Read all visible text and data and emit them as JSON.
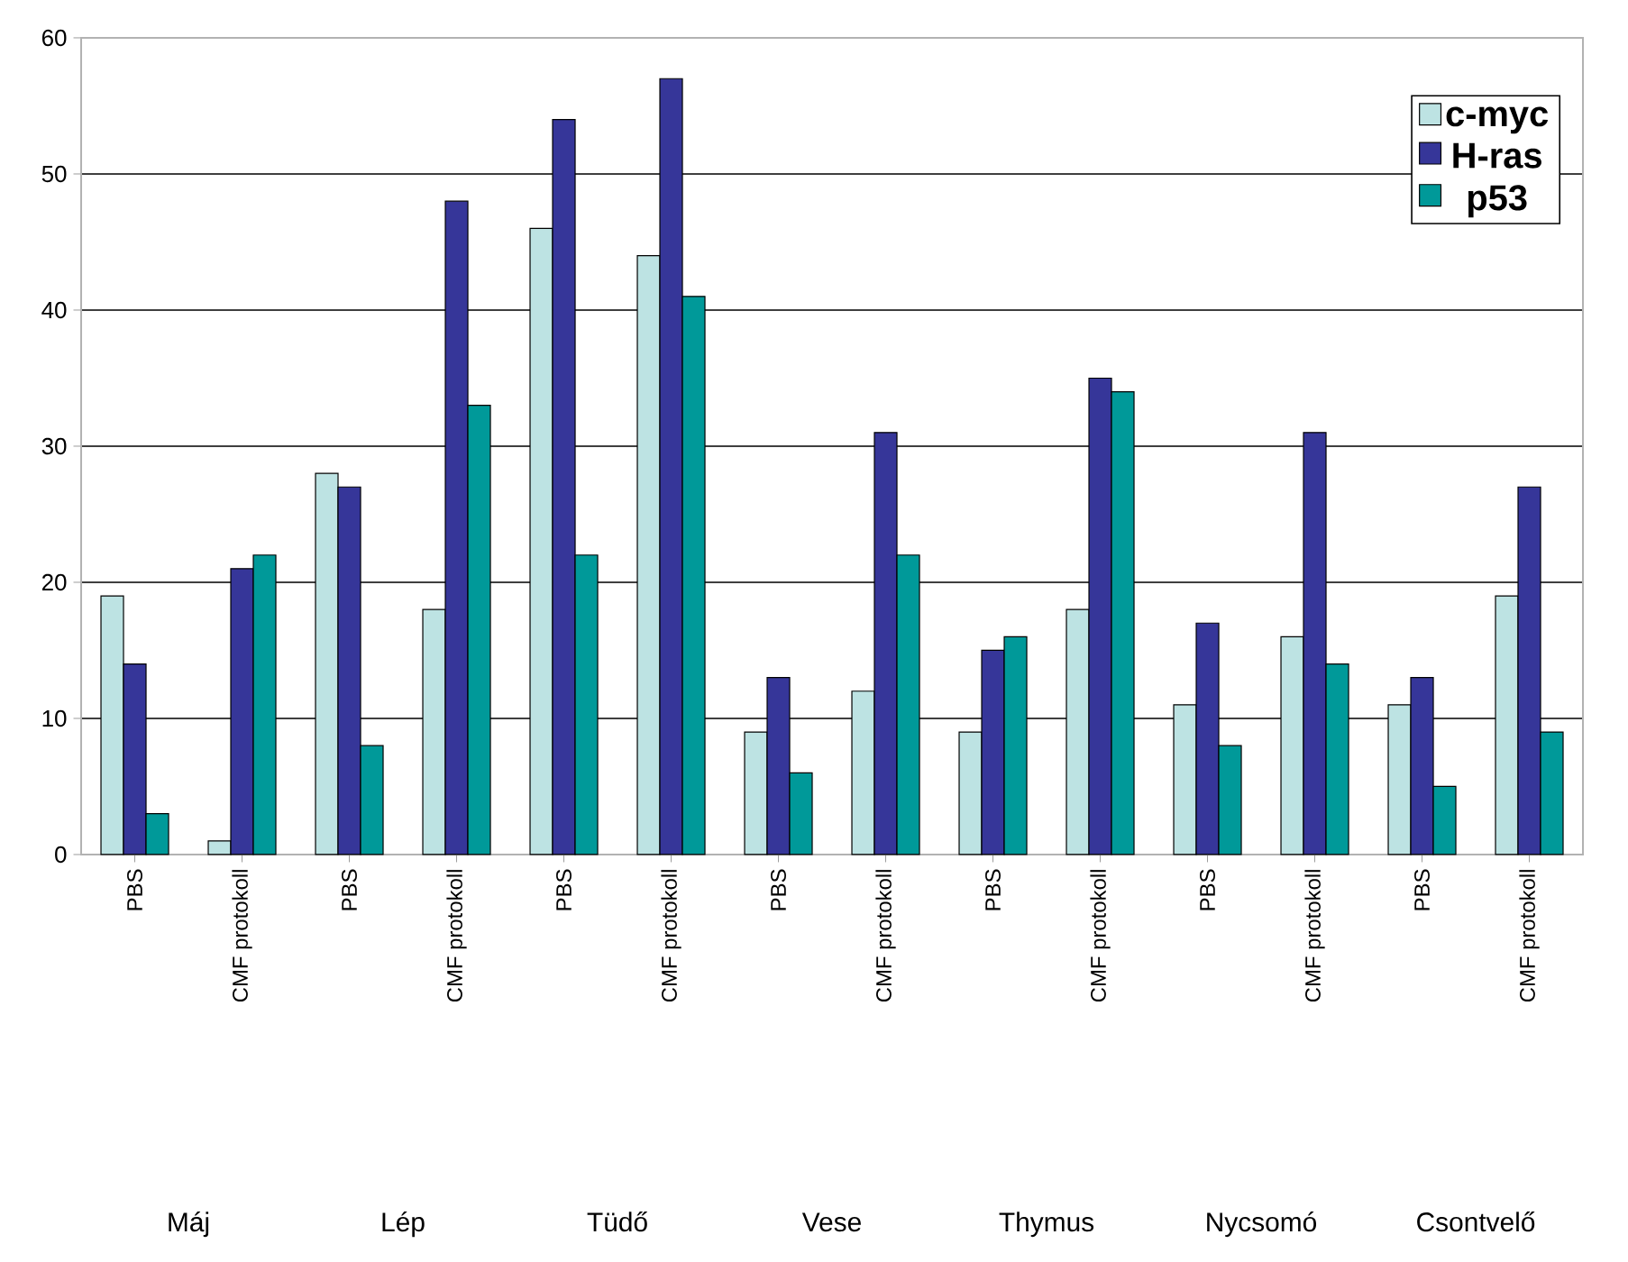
{
  "chart_data": {
    "type": "bar",
    "categories": [
      "PBS",
      "CMF protokoll",
      "PBS",
      "CMF protokoll",
      "PBS",
      "CMF protokoll",
      "PBS",
      "CMF protokoll",
      "PBS",
      "CMF protokoll",
      "PBS",
      "CMF protokoll",
      "PBS",
      "CMF protokoll"
    ],
    "series": [
      {
        "name": "c-myc",
        "color": "#bde3e3",
        "values": [
          19,
          1,
          28,
          18,
          46,
          44,
          9,
          12,
          9,
          18,
          11,
          16,
          11,
          19
        ]
      },
      {
        "name": "H-ras",
        "color": "#363699",
        "values": [
          14,
          21,
          27,
          48,
          54,
          57,
          13,
          31,
          15,
          35,
          17,
          31,
          13,
          27
        ]
      },
      {
        "name": "p53",
        "color": "#009999",
        "values": [
          3,
          22,
          8,
          33,
          22,
          41,
          6,
          22,
          16,
          34,
          8,
          14,
          5,
          9
        ]
      }
    ],
    "annotations": [
      "Máj",
      "Lép",
      "Tüdő",
      "Vese",
      "Thymus",
      "Nycsomó",
      "Csontvelő"
    ],
    "ylim": [
      0,
      60
    ],
    "yticks": [
      0,
      10,
      20,
      30,
      40,
      50,
      60
    ],
    "grid": "y",
    "legend": "top right"
  }
}
